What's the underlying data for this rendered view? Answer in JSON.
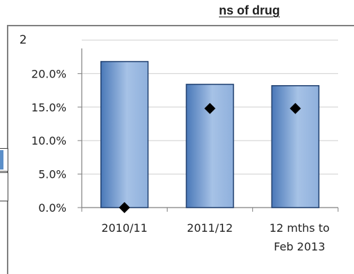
{
  "title": "ns of drug",
  "partial_label": "2",
  "chart_data": {
    "type": "bar",
    "categories": [
      [
        "2010/11"
      ],
      [
        "2011/12"
      ],
      [
        "12 mths to",
        "Feb 2013"
      ]
    ],
    "series": [
      {
        "type": "bar",
        "values": [
          21.8,
          18.4,
          18.2
        ]
      },
      {
        "type": "scatter",
        "values": [
          0.0,
          14.8,
          14.8
        ]
      }
    ],
    "ylim": [
      0,
      25
    ],
    "yticks": [
      "0.0%",
      "5.0%",
      "10.0%",
      "15.0%",
      "20.0%"
    ],
    "ytick_values": [
      0,
      5,
      10,
      15,
      20
    ],
    "grid": true,
    "colors": {
      "bar_edge": "#1f3f6f",
      "bar_light": "#9bb9e0",
      "bar_dark": "#4a78b8",
      "marker": "#000000",
      "grid": "#cfcfcf"
    }
  }
}
